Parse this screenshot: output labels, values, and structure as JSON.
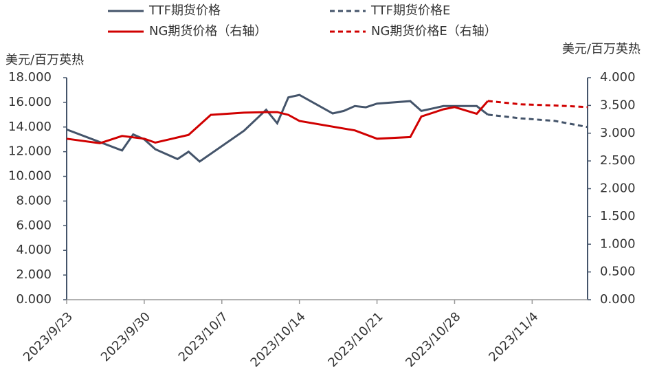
{
  "chart_data": {
    "type": "line",
    "ylabel": "美元/百万英热",
    "y2label": "美元/百万英热",
    "xlim": [
      "2023/9/23",
      "2023/11/9"
    ],
    "xticks": [
      "2023/9/23",
      "2023/9/30",
      "2023/10/7",
      "2023/10/14",
      "2023/10/21",
      "2023/10/28",
      "2023/11/4"
    ],
    "ylim": [
      0,
      18
    ],
    "yticks": [
      {
        "value": 0,
        "label": "0.000"
      },
      {
        "value": 2,
        "label": "2.000"
      },
      {
        "value": 4,
        "label": "4.000"
      },
      {
        "value": 6,
        "label": "6.000"
      },
      {
        "value": 8,
        "label": "8.000"
      },
      {
        "value": 10,
        "label": "10.000"
      },
      {
        "value": 12,
        "label": "12.000"
      },
      {
        "value": 14,
        "label": "14.000"
      },
      {
        "value": 16,
        "label": "16.000"
      },
      {
        "value": 18,
        "label": "18.000"
      }
    ],
    "y2lim": [
      0,
      4
    ],
    "y2ticks": [
      {
        "value": 0,
        "label": "0.000"
      },
      {
        "value": 0.5,
        "label": "0.500"
      },
      {
        "value": 1,
        "label": "1.000"
      },
      {
        "value": 1.5,
        "label": "1.500"
      },
      {
        "value": 2,
        "label": "2.000"
      },
      {
        "value": 2.5,
        "label": "2.500"
      },
      {
        "value": 3,
        "label": "3.000"
      },
      {
        "value": 3.5,
        "label": "3.500"
      },
      {
        "value": 4,
        "label": "4.000"
      }
    ],
    "series": [
      {
        "name": "TTF期货价格",
        "color": "#44546a",
        "dash": false,
        "x": [
          "2023/9/23",
          "2023/9/28",
          "2023/9/29",
          "2023/9/30",
          "2023/10/1",
          "2023/10/3",
          "2023/10/4",
          "2023/10/5",
          "2023/10/9",
          "2023/10/11",
          "2023/10/12",
          "2023/10/13",
          "2023/10/14",
          "2023/10/17",
          "2023/10/18",
          "2023/10/19",
          "2023/10/20",
          "2023/10/21",
          "2023/10/24",
          "2023/10/25",
          "2023/10/27",
          "2023/10/30",
          "2023/10/31"
        ],
        "values": [
          13.8,
          12.1,
          13.4,
          13.0,
          12.2,
          11.4,
          12.0,
          11.2,
          13.7,
          15.4,
          14.3,
          16.4,
          16.6,
          15.1,
          15.3,
          15.7,
          15.6,
          15.9,
          16.1,
          15.3,
          15.7,
          15.7,
          15.0
        ]
      },
      {
        "name": "TTF期货价格E",
        "color": "#44546a",
        "dash": true,
        "x": [
          "2023/10/31",
          "2023/11/3",
          "2023/11/6",
          "2023/11/9"
        ],
        "values": [
          15.0,
          14.7,
          14.5,
          14.0
        ]
      },
      {
        "name": "NG期货价格（右轴）",
        "color": "#d00000",
        "dash": false,
        "axis": "y2",
        "x": [
          "2023/9/23",
          "2023/9/26",
          "2023/9/28",
          "2023/9/30",
          "2023/10/1",
          "2023/10/4",
          "2023/10/6",
          "2023/10/9",
          "2023/10/11",
          "2023/10/12",
          "2023/10/13",
          "2023/10/14",
          "2023/10/19",
          "2023/10/21",
          "2023/10/24",
          "2023/10/25",
          "2023/10/27",
          "2023/10/28",
          "2023/10/30",
          "2023/10/31"
        ],
        "values": [
          2.9,
          2.82,
          2.95,
          2.9,
          2.83,
          2.97,
          3.33,
          3.37,
          3.38,
          3.38,
          3.33,
          3.22,
          3.05,
          2.9,
          2.93,
          3.3,
          3.43,
          3.47,
          3.35,
          3.58
        ]
      },
      {
        "name": "NG期货价格E（右轴）",
        "color": "#d00000",
        "dash": true,
        "axis": "y2",
        "x": [
          "2023/10/31",
          "2023/11/3",
          "2023/11/6",
          "2023/11/9"
        ],
        "values": [
          3.58,
          3.52,
          3.5,
          3.47
        ]
      }
    ]
  }
}
